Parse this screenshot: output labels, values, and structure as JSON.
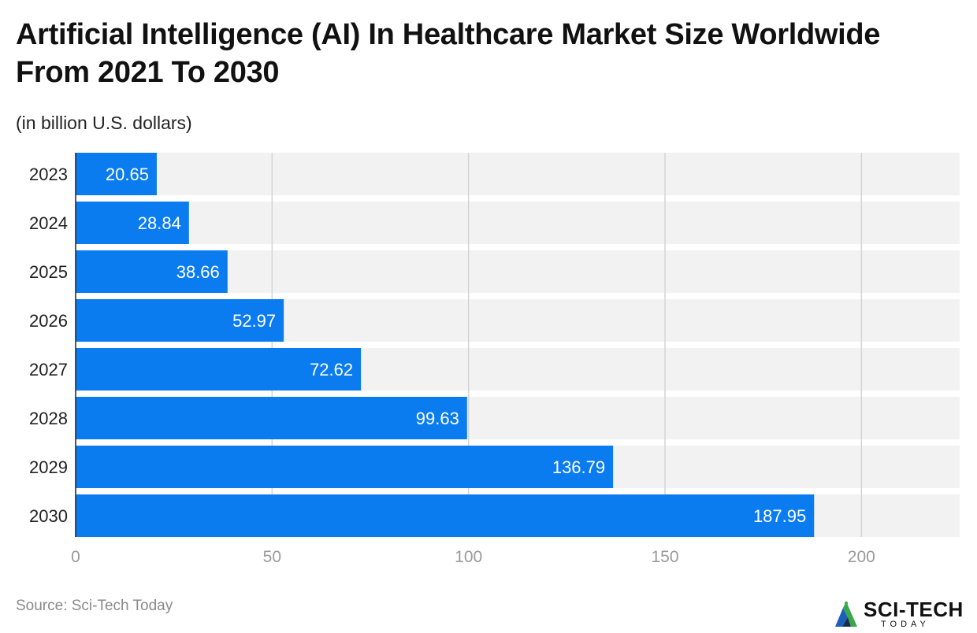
{
  "chart_data": {
    "type": "bar",
    "orientation": "horizontal",
    "title": "Artificial Intelligence (AI) In Healthcare Market Size Worldwide From 2021 To 2030",
    "subtitle": "(in billion U.S. dollars)",
    "categories": [
      "2023",
      "2024",
      "2025",
      "2026",
      "2027",
      "2028",
      "2029",
      "2030"
    ],
    "values": [
      20.65,
      28.84,
      38.66,
      52.97,
      72.62,
      99.63,
      136.79,
      187.95
    ],
    "value_labels": [
      "20.65",
      "28.84",
      "38.66",
      "52.97",
      "72.62",
      "99.63",
      "136.79",
      "187.95"
    ],
    "xlim": [
      0,
      225
    ],
    "xticks": [
      0,
      50,
      100,
      150,
      200
    ],
    "xtick_labels": [
      "0",
      "50",
      "100",
      "150",
      "200"
    ],
    "grid": true,
    "bar_color": "#0a7cf0",
    "row_background_color": "#f2f2f2",
    "gridline_color": "#d4d4d4",
    "value_label_color": "#ffffff",
    "tick_label_color": "#9a9a9a"
  },
  "footer": {
    "source": "Source: Sci-Tech Today",
    "logo_name": "SCI-TECH",
    "logo_tagline": "TODAY",
    "logo_icon": "sci-tech-triangle-logo-icon",
    "logo_colors": [
      "#1b5fb8",
      "#39a84a",
      "#1a2a4a"
    ]
  }
}
